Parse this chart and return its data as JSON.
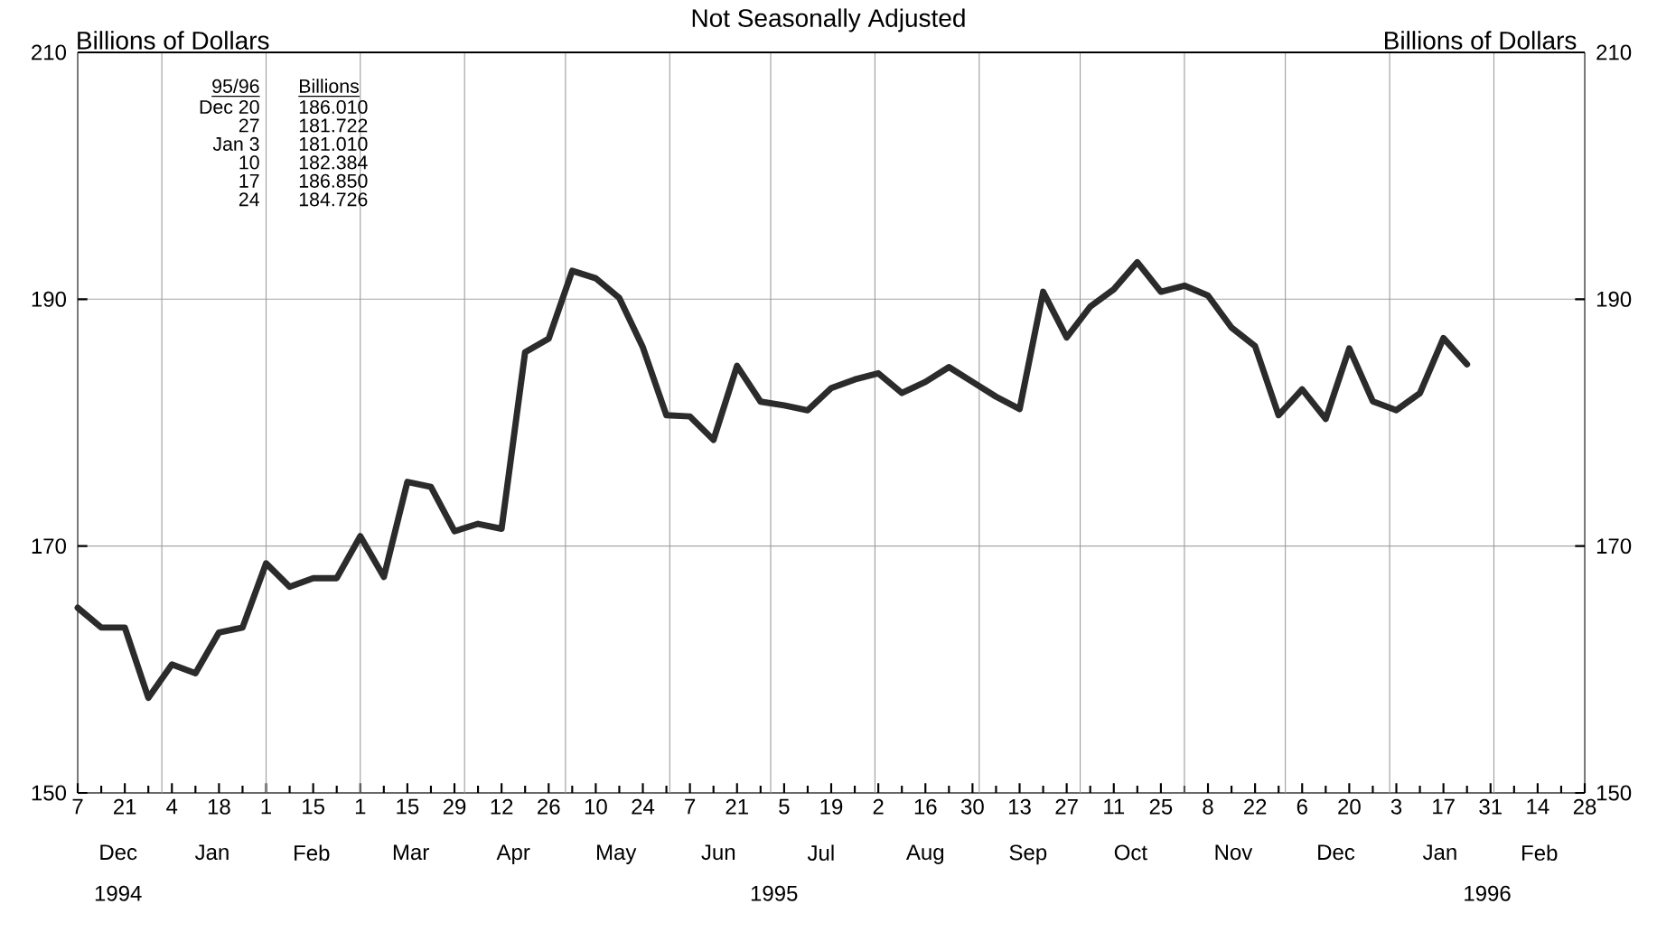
{
  "chart_data": {
    "type": "line",
    "title": "Not Seasonally Adjusted",
    "ylabel": "Billions of Dollars",
    "y2label": "Billions of Dollars",
    "x": [
      "1994-12-07",
      "1994-12-14",
      "1994-12-21",
      "1994-12-28",
      "1995-01-04",
      "1995-01-11",
      "1995-01-18",
      "1995-01-25",
      "1995-02-01",
      "1995-02-08",
      "1995-02-15",
      "1995-02-22",
      "1995-03-01",
      "1995-03-08",
      "1995-03-15",
      "1995-03-22",
      "1995-03-29",
      "1995-04-05",
      "1995-04-12",
      "1995-04-19",
      "1995-04-26",
      "1995-05-03",
      "1995-05-10",
      "1995-05-17",
      "1995-05-24",
      "1995-05-31",
      "1995-06-07",
      "1995-06-14",
      "1995-06-21",
      "1995-06-28",
      "1995-07-05",
      "1995-07-12",
      "1995-07-19",
      "1995-07-26",
      "1995-08-02",
      "1995-08-09",
      "1995-08-16",
      "1995-08-23",
      "1995-08-30",
      "1995-09-06",
      "1995-09-13",
      "1995-09-20",
      "1995-09-27",
      "1995-10-04",
      "1995-10-11",
      "1995-10-18",
      "1995-10-25",
      "1995-11-01",
      "1995-11-08",
      "1995-11-15",
      "1995-11-22",
      "1995-11-29",
      "1995-12-06",
      "1995-12-13",
      "1995-12-20",
      "1995-12-27",
      "1996-01-03",
      "1996-01-10",
      "1996-01-17",
      "1996-01-24"
    ],
    "series": [
      {
        "color": "#2b2b2b",
        "values": [
          165.0,
          163.4,
          163.4,
          157.7,
          160.4,
          159.7,
          163.0,
          163.4,
          168.6,
          166.7,
          167.4,
          167.4,
          170.8,
          167.5,
          175.2,
          174.8,
          171.2,
          171.8,
          171.4,
          185.7,
          186.8,
          192.3,
          191.7,
          190.1,
          186.1,
          180.6,
          180.5,
          178.6,
          184.6,
          181.7,
          181.4,
          181.0,
          182.8,
          183.5,
          184.0,
          182.4,
          183.3,
          184.5,
          183.3,
          182.1,
          181.1,
          190.6,
          186.9,
          189.4,
          190.8,
          193.0,
          190.6,
          191.1,
          190.3,
          187.7,
          186.2,
          180.6,
          182.7,
          180.3,
          186.01,
          181.722,
          181.01,
          182.384,
          186.85,
          184.726
        ]
      }
    ],
    "line_style": "solid",
    "grid": "y",
    "xlim": [
      "1994-12-07",
      "1996-02-28"
    ],
    "xticks": [
      {
        "value": "1994-12-07",
        "label": "7"
      },
      {
        "value": "1994-12-21",
        "label": "21"
      },
      {
        "value": "1995-01-04",
        "label": "4"
      },
      {
        "value": "1995-01-18",
        "label": "18"
      },
      {
        "value": "1995-02-01",
        "label": "1"
      },
      {
        "value": "1995-02-15",
        "label": "15"
      },
      {
        "value": "1995-03-01",
        "label": "1"
      },
      {
        "value": "1995-03-15",
        "label": "15"
      },
      {
        "value": "1995-03-29",
        "label": "29"
      },
      {
        "value": "1995-04-12",
        "label": "12"
      },
      {
        "value": "1995-04-26",
        "label": "26"
      },
      {
        "value": "1995-05-10",
        "label": "10"
      },
      {
        "value": "1995-05-24",
        "label": "24"
      },
      {
        "value": "1995-06-07",
        "label": "7"
      },
      {
        "value": "1995-06-21",
        "label": "21"
      },
      {
        "value": "1995-07-05",
        "label": "5"
      },
      {
        "value": "1995-07-19",
        "label": "19"
      },
      {
        "value": "1995-08-02",
        "label": "2"
      },
      {
        "value": "1995-08-16",
        "label": "16"
      },
      {
        "value": "1995-08-30",
        "label": "30"
      },
      {
        "value": "1995-09-13",
        "label": "13"
      },
      {
        "value": "1995-09-27",
        "label": "27"
      },
      {
        "value": "1995-10-11",
        "label": "11"
      },
      {
        "value": "1995-10-25",
        "label": "25"
      },
      {
        "value": "1995-11-08",
        "label": "8"
      },
      {
        "value": "1995-11-22",
        "label": "22"
      },
      {
        "value": "1995-12-06",
        "label": "6"
      },
      {
        "value": "1995-12-20",
        "label": "20"
      },
      {
        "value": "1996-01-03",
        "label": "3"
      },
      {
        "value": "1996-01-17",
        "label": "17"
      },
      {
        "value": "1996-01-31",
        "label": "31"
      },
      {
        "value": "1996-02-14",
        "label": "14"
      },
      {
        "value": "1996-02-28",
        "label": "28"
      }
    ],
    "ylim": [
      150,
      210
    ],
    "yticks": [
      150,
      170,
      190,
      210
    ],
    "y2lim": [
      150,
      210
    ],
    "y2ticks": [
      150,
      170,
      190,
      210
    ],
    "ref_lines": [
      {
        "axis": "x",
        "value": "1995-01-01",
        "color": "#9a9a9a"
      },
      {
        "axis": "x",
        "value": "1995-02-01",
        "color": "#9a9a9a"
      },
      {
        "axis": "x",
        "value": "1995-03-01",
        "color": "#9a9a9a"
      },
      {
        "axis": "x",
        "value": "1995-04-01",
        "color": "#9a9a9a"
      },
      {
        "axis": "x",
        "value": "1995-05-01",
        "color": "#9a9a9a"
      },
      {
        "axis": "x",
        "value": "1995-06-01",
        "color": "#9a9a9a"
      },
      {
        "axis": "x",
        "value": "1995-07-01",
        "color": "#9a9a9a"
      },
      {
        "axis": "x",
        "value": "1995-08-01",
        "color": "#9a9a9a"
      },
      {
        "axis": "x",
        "value": "1995-09-01",
        "color": "#9a9a9a"
      },
      {
        "axis": "x",
        "value": "1995-10-01",
        "color": "#9a9a9a"
      },
      {
        "axis": "x",
        "value": "1995-11-01",
        "color": "#9a9a9a"
      },
      {
        "axis": "x",
        "value": "1995-12-01",
        "color": "#9a9a9a"
      },
      {
        "axis": "x",
        "value": "1996-01-01",
        "color": "#9a9a9a"
      },
      {
        "axis": "x",
        "value": "1996-02-01",
        "color": "#9a9a9a"
      }
    ],
    "annotations": [
      "Dec",
      "Jan",
      "Feb",
      "Mar",
      "Apr",
      "May",
      "Jun",
      "Jul",
      "Aug",
      "Sep",
      "Oct",
      "Nov",
      "Dec",
      "Jan",
      "Feb",
      "1994",
      "1995",
      "1996",
      "95/96",
      "Billions",
      "Dec 20",
      "186.010",
      "27",
      "181.722",
      "Jan 3",
      "181.010",
      "10",
      "182.384",
      "17",
      "186.850",
      "24",
      "184.726"
    ]
  }
}
